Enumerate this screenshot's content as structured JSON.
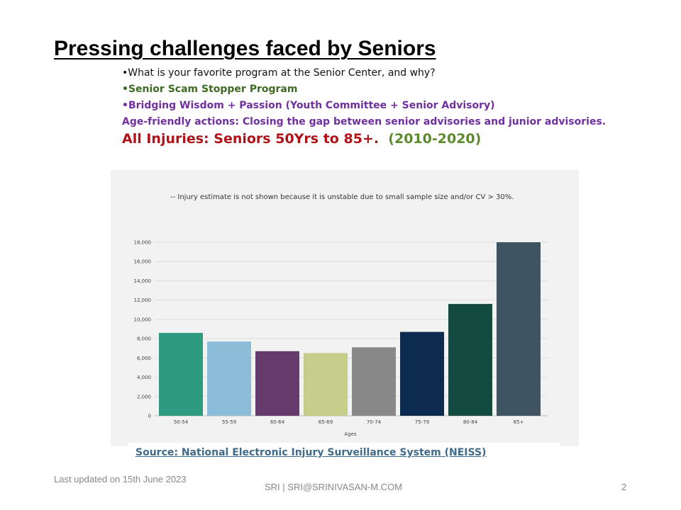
{
  "slide": {
    "title": "Pressing challenges faced by Seniors",
    "bullets": [
      "•What is your favorite program at the Senior Center, and why?",
      "•Senior Scam Stopper Program",
      "•Bridging Wisdom + Passion (Youth Committee + Senior Advisory)",
      "Age-friendly actions: Closing the gap between senior advisories and junior advisories."
    ],
    "headline": {
      "red": "All Injuries: Seniors 50Yrs to 85+.",
      "green": "(2010-2020)"
    },
    "source": "Source: National Electronic Injury Surveillance System (NEISS)",
    "footer": {
      "updated": "Last updated on 15th June 2023",
      "author": "SRI | SRI@SRINIVASAN-M.COM",
      "page": "2"
    }
  },
  "chart_data": {
    "type": "bar",
    "note": "-- Injury estimate is not shown because it is unstable due to small sample size and/or CV > 30%.",
    "xlabel": "Ages",
    "ylabel": "",
    "categories": [
      "50-54",
      "55-59",
      "60-64",
      "65-69",
      "70-74",
      "75-79",
      "80-84",
      "85+"
    ],
    "values": [
      8600,
      7700,
      6700,
      6500,
      7100,
      8700,
      11600,
      18000
    ],
    "colors": [
      "#2e9a80",
      "#8bbcd8",
      "#653b6c",
      "#c6cc8a",
      "#888888",
      "#0d2b4e",
      "#124a3f",
      "#3f5462"
    ],
    "ylim": [
      0,
      18000
    ],
    "yticks": [
      0,
      2000,
      4000,
      6000,
      8000,
      10000,
      12000,
      14000,
      16000,
      18000
    ],
    "ytick_labels": [
      "0",
      "2,000",
      "4,000",
      "6,000",
      "8,000",
      "10,000",
      "12,000",
      "14,000",
      "16,000",
      "18,000"
    ],
    "grid": true,
    "legend": "none"
  }
}
